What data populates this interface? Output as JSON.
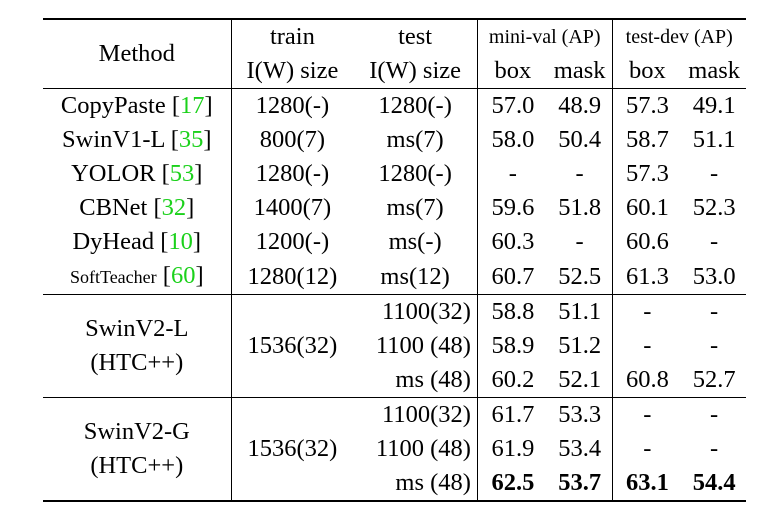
{
  "header": {
    "method": "Method",
    "train": "train",
    "test": "test",
    "minival": "mini-val (AP)",
    "testdev": "test-dev (AP)",
    "train_sub": "I(W) size",
    "test_sub": "I(W) size",
    "box": "box",
    "mask": "mask"
  },
  "rows": [
    {
      "method": "CopyPaste",
      "ref": "17",
      "train": "1280(-)",
      "test": "1280(-)",
      "mv_box": "57.0",
      "mv_mask": "48.9",
      "td_box": "57.3",
      "td_mask": "49.1"
    },
    {
      "method": "SwinV1-L",
      "ref": "35",
      "train": "800(7)",
      "test": "ms(7)",
      "mv_box": "58.0",
      "mv_mask": "50.4",
      "td_box": "58.7",
      "td_mask": "51.1"
    },
    {
      "method": "YOLOR",
      "ref": "53",
      "train": "1280(-)",
      "test": "1280(-)",
      "mv_box": "-",
      "mv_mask": "-",
      "td_box": "57.3",
      "td_mask": "-"
    },
    {
      "method": "CBNet",
      "ref": "32",
      "train": "1400(7)",
      "test": "ms(7)",
      "mv_box": "59.6",
      "mv_mask": "51.8",
      "td_box": "60.1",
      "td_mask": "52.3"
    },
    {
      "method": "DyHead",
      "ref": "10",
      "train": "1200(-)",
      "test": "ms(-)",
      "mv_box": "60.3",
      "mv_mask": "-",
      "td_box": "60.6",
      "td_mask": "-"
    },
    {
      "method": "SoftTeacher",
      "ref": "60",
      "train": "1280(12)",
      "test": "ms(12)",
      "mv_box": "60.7",
      "mv_mask": "52.5",
      "td_box": "61.3",
      "td_mask": "53.0"
    }
  ],
  "group_l": {
    "name1": "SwinV2-L",
    "name2": "(HTC++)",
    "train": "1536(32)",
    "rows": [
      {
        "test": "1100(32)",
        "mv_box": "58.8",
        "mv_mask": "51.1",
        "td_box": "-",
        "td_mask": "-"
      },
      {
        "test": "1100 (48)",
        "mv_box": "58.9",
        "mv_mask": "51.2",
        "td_box": "-",
        "td_mask": "-"
      },
      {
        "test": "ms (48)",
        "mv_box": "60.2",
        "mv_mask": "52.1",
        "td_box": "60.8",
        "td_mask": "52.7"
      }
    ]
  },
  "group_g": {
    "name1": "SwinV2-G",
    "name2": "(HTC++)",
    "train": "1536(32)",
    "rows": [
      {
        "test": "1100(32)",
        "mv_box": "61.7",
        "mv_mask": "53.3",
        "td_box": "-",
        "td_mask": "-"
      },
      {
        "test": "1100 (48)",
        "mv_box": "61.9",
        "mv_mask": "53.4",
        "td_box": "-",
        "td_mask": "-"
      },
      {
        "test": "ms (48)",
        "mv_box": "62.5",
        "mv_mask": "53.7",
        "td_box": "63.1",
        "td_mask": "54.4"
      }
    ]
  }
}
